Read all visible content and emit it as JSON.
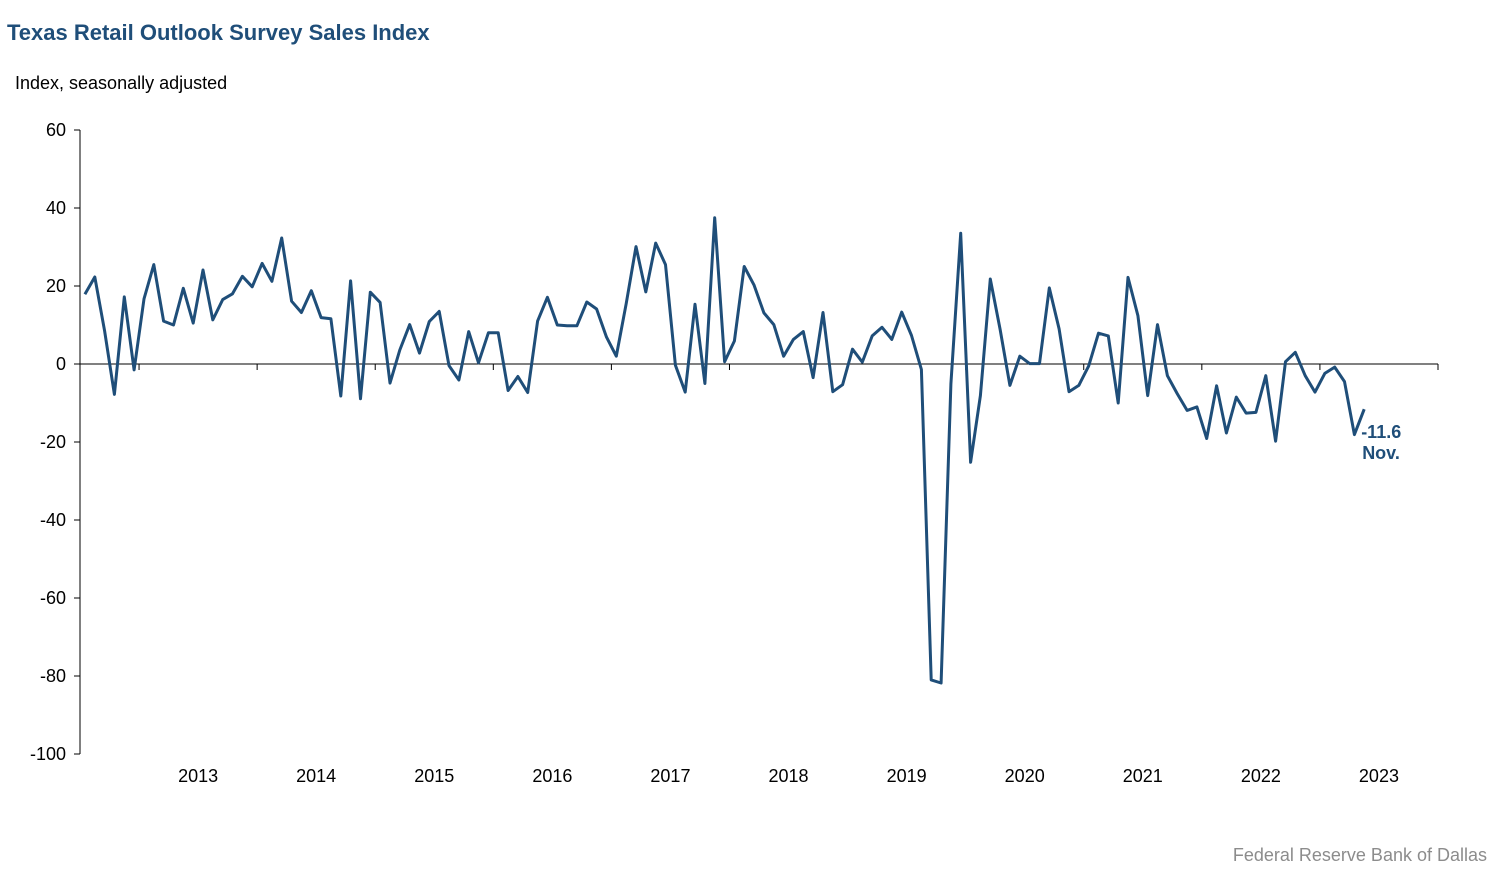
{
  "chart_data": {
    "type": "line",
    "title": "Texas Retail Outlook Survey Sales Index",
    "ylabel": "Index, seasonally adjusted",
    "xlabel": "",
    "ylim": [
      -100,
      60
    ],
    "yticks": [
      60,
      40,
      20,
      0,
      -20,
      -40,
      -60,
      -80,
      -100
    ],
    "xlim": [
      2012.5,
      2024.0
    ],
    "xticks": [
      "2013",
      "2014",
      "2015",
      "2016",
      "2017",
      "2018",
      "2019",
      "2020",
      "2021",
      "2022",
      "2023"
    ],
    "grid": false,
    "legend": "none",
    "line_color": "#1f4e79",
    "series": [
      {
        "values": [
          17.9,
          22.3,
          8.5,
          -7.8,
          17.2,
          -1.5,
          16.7,
          25.5,
          11.0,
          10.0,
          19.4,
          10.5,
          24.1,
          11.3,
          16.5,
          18.0,
          22.5,
          19.8,
          25.8,
          21.2,
          32.3,
          16.1,
          13.2,
          18.8,
          11.9,
          11.6,
          -8.2,
          21.3,
          -8.9,
          18.4,
          15.8,
          -4.9,
          3.6,
          10.1,
          2.8,
          10.9,
          13.5,
          -0.4,
          -4.1,
          8.3,
          0.3,
          8.0,
          8.0,
          -6.8,
          -3.2,
          -7.3,
          11.0,
          17.1,
          10.0,
          9.8,
          9.8,
          15.9,
          14.1,
          6.9,
          2.0,
          15.5,
          30.1,
          18.5,
          31.0,
          25.5,
          -0.3,
          -7.2,
          15.3,
          -5.0,
          37.5,
          0.6,
          5.9,
          25.0,
          20.2,
          13.1,
          10.1,
          2.0,
          6.3,
          8.3,
          -3.5,
          13.2,
          -7.1,
          -5.3,
          3.8,
          0.5,
          7.2,
          9.4,
          6.3,
          13.3,
          7.3,
          -1.4,
          -81.0,
          -81.8,
          -5.1,
          33.5,
          -25.2,
          -8.1,
          21.8,
          8.9,
          -5.5,
          2.0,
          0.1,
          0.1,
          19.5,
          9.0,
          -7.1,
          -5.5,
          -0.5,
          7.9,
          7.2,
          -10.0,
          22.2,
          12.4,
          -8.1,
          10.1,
          -3.0,
          -7.6,
          -11.9,
          -11.0,
          -19.1,
          -5.6,
          -17.7,
          -8.5,
          -12.6,
          -12.4,
          -3.0,
          -19.8,
          0.6,
          3.0,
          -3.0,
          -7.2,
          -2.4,
          -0.8,
          -4.5,
          -18.1,
          -11.6
        ]
      }
    ],
    "annotations": [
      {
        "value_label": "-11.6",
        "period_label": "Nov."
      }
    ]
  },
  "source": "Federal Reserve Bank of Dallas"
}
